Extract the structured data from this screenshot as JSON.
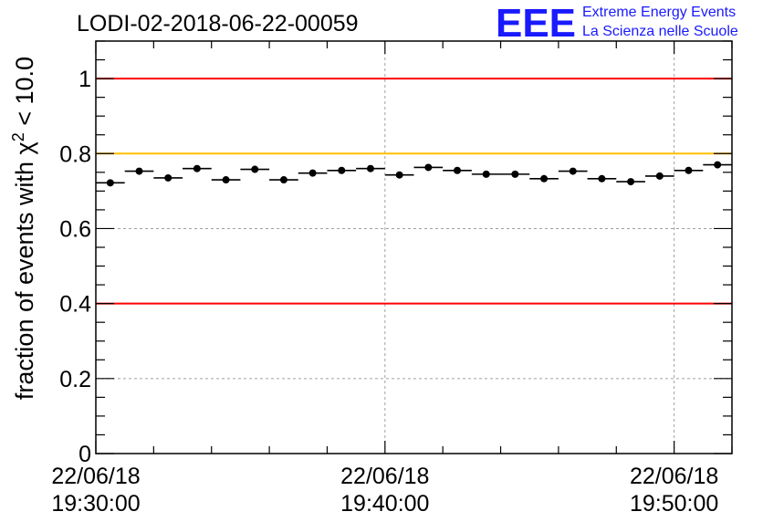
{
  "header": {
    "title": "LODI-02-2018-06-22-00059",
    "logo_letters": "EEE",
    "logo_line1": "Extreme Energy Events",
    "logo_line2": "La Scienza nelle Scuole"
  },
  "chart_data": {
    "type": "scatter",
    "title": "LODI-02-2018-06-22-00059",
    "ylabel_prefix": "fraction of events with ",
    "ylabel_symbol": "χ",
    "ylabel_power": "2",
    "ylabel_suffix": " < 10.0",
    "xlabel": "",
    "xlim_minutes": [
      0,
      22
    ],
    "ylim": [
      0,
      1.1
    ],
    "yticks": [
      0,
      0.2,
      0.4,
      0.6,
      0.8,
      1
    ],
    "ytick_labels": [
      "0",
      "0.2",
      "0.4",
      "0.6",
      "0.8",
      "1"
    ],
    "xticks": [
      {
        "minutes": 0,
        "date": "22/06/18",
        "time": "19:30:00"
      },
      {
        "minutes": 10,
        "date": "22/06/18",
        "time": "19:40:00"
      },
      {
        "minutes": 20,
        "date": "22/06/18",
        "time": "19:50:00"
      }
    ],
    "grid": true,
    "reference_lines": [
      {
        "value": 1.0,
        "color": "#ff0000"
      },
      {
        "value": 0.8,
        "color": "#ffbf00"
      },
      {
        "value": 0.4,
        "color": "#ff0000"
      }
    ],
    "bin_width_minutes": 1,
    "series": [
      {
        "name": "fraction",
        "x_minutes": [
          0.5,
          1.5,
          2.5,
          3.5,
          4.5,
          5.5,
          6.5,
          7.5,
          8.5,
          9.5,
          10.5,
          11.5,
          12.5,
          13.5,
          14.5,
          15.5,
          16.5,
          17.5,
          18.5,
          19.5,
          20.5,
          21.5
        ],
        "values": [
          0.722,
          0.753,
          0.735,
          0.76,
          0.73,
          0.758,
          0.73,
          0.748,
          0.755,
          0.76,
          0.743,
          0.763,
          0.755,
          0.745,
          0.745,
          0.733,
          0.753,
          0.733,
          0.725,
          0.74,
          0.755,
          0.77
        ]
      }
    ],
    "colors": {
      "marker": "#000000",
      "grid": "#a0a0a0",
      "axis": "#000000",
      "logo": "#1a1aff"
    }
  }
}
